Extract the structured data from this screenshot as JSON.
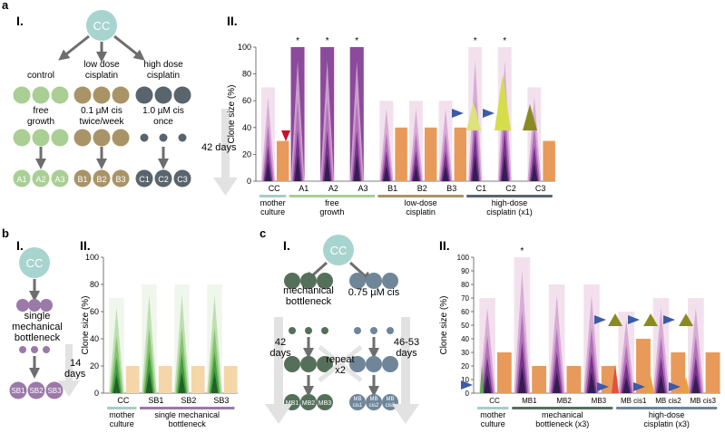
{
  "panel_a": {
    "letter": "a",
    "I": {
      "numeral": "I.",
      "root": "CC",
      "branches": [
        {
          "title": [
            "control"
          ],
          "treatment": [
            "free",
            "growth"
          ],
          "leaves": [
            "A1",
            "A2",
            "A3"
          ],
          "color": "#a9cf94",
          "leaf_color": "#a9cf94"
        },
        {
          "title": [
            "low dose",
            "cisplatin"
          ],
          "treatment": [
            "0.1 µM cis",
            "twice/week"
          ],
          "leaves": [
            "B1",
            "B2",
            "B3"
          ],
          "color": "#a99468",
          "leaf_color": "#a99468"
        },
        {
          "title": [
            "high dose",
            "cisplatin"
          ],
          "treatment": [
            "1.0 µM cis",
            "once"
          ],
          "leaves": [
            "C1",
            "C2",
            "C3"
          ],
          "color": "#59646d",
          "leaf_color": "#59646d"
        }
      ],
      "duration": "42 days"
    },
    "II": {
      "numeral": "II.",
      "ylabel": "Clone size (%)",
      "ticks": [
        "0",
        "20",
        "40",
        "60",
        "80",
        "100"
      ],
      "categories": [
        "CC",
        "A1",
        "A2",
        "A3",
        "B1",
        "B2",
        "B3",
        "C1",
        "C2",
        "C3"
      ],
      "clone_size": [
        70,
        100,
        100,
        100,
        60,
        60,
        60,
        100,
        100,
        70
      ],
      "orange": [
        30,
        0,
        0,
        0,
        40,
        40,
        40,
        0,
        0,
        30
      ],
      "stars": [
        "",
        "*",
        "*",
        "*",
        "",
        "",
        "",
        "*",
        "*",
        ""
      ],
      "star_glyph": "*",
      "groups": [
        {
          "lines": [
            "mother",
            "culture"
          ],
          "color": "#a8ccc8"
        },
        {
          "lines": [
            "free",
            "growth"
          ],
          "color": "#a9cf94"
        },
        {
          "lines": [
            "low-dose",
            "cisplatin"
          ],
          "color": "#a99468"
        },
        {
          "lines": [
            "high-dose",
            "cisplatin (x1)"
          ],
          "color": "#59646d"
        }
      ]
    }
  },
  "panel_b": {
    "letter": "b",
    "I": {
      "numeral": "I.",
      "root": "CC",
      "label": [
        "single",
        "mechanical",
        "bottleneck"
      ],
      "leaves": [
        "SB1",
        "SB2",
        "SB3"
      ],
      "duration": [
        "14",
        "days"
      ],
      "color": "#9b79a8"
    },
    "II": {
      "numeral": "II.",
      "ylabel": "Clone size (%)",
      "ticks": [
        "0",
        "20",
        "40",
        "60",
        "80",
        "100"
      ],
      "categories": [
        "CC",
        "SB1",
        "SB2",
        "SB3"
      ],
      "clone_size": [
        70,
        80,
        80,
        80
      ],
      "orange": [
        20,
        20,
        20,
        20
      ],
      "groups": [
        {
          "lines": [
            "mother",
            "culture"
          ],
          "color": "#a8ccc8"
        },
        {
          "lines": [
            "single mechanical",
            "bottleneck"
          ],
          "color": "#9b79a8"
        }
      ]
    }
  },
  "panel_c": {
    "letter": "c",
    "I": {
      "numeral": "I.",
      "root": "CC",
      "left_label": [
        "mechanical",
        "bottleneck"
      ],
      "right_label": [
        "0.75 µM cis"
      ],
      "left_days": [
        "42",
        "days"
      ],
      "right_days": [
        "46-53",
        "days"
      ],
      "repeat": [
        "repeat",
        "x2"
      ],
      "left_leaves": [
        "MB1",
        "MB2",
        "MB3"
      ],
      "right_leaves": [
        [
          "MB",
          "cis1"
        ],
        [
          "MB",
          "cis2"
        ],
        [
          "MB",
          "cis3"
        ]
      ],
      "left_color": "#55705a",
      "right_color": "#6f8699"
    },
    "II": {
      "numeral": "II.",
      "ylabel": "Clone size (%)",
      "ticks": [
        "0",
        "10",
        "20",
        "30",
        "40",
        "50",
        "60",
        "70",
        "80",
        "90",
        "100"
      ],
      "categories": [
        "CC",
        "MB1",
        "MB2",
        "MB3",
        "MB cis1",
        "MB cis2",
        "MB cis3"
      ],
      "clone_size": [
        70,
        100,
        80,
        80,
        60,
        70,
        70
      ],
      "orange": [
        30,
        20,
        20,
        20,
        40,
        30,
        30
      ],
      "stars": [
        "",
        "*",
        "",
        "",
        "",
        "",
        ""
      ],
      "star_glyph": "*",
      "groups": [
        {
          "lines": [
            "mother",
            "culture"
          ],
          "color": "#a8ccc8"
        },
        {
          "lines": [
            "mechanical",
            "bottleneck (x3)"
          ],
          "color": "#55705a"
        },
        {
          "lines": [
            "high-dose",
            "cisplatin (x3)"
          ],
          "color": "#6f8699"
        }
      ]
    }
  },
  "colors": {
    "root": "#a8d4cf",
    "arrow": "#6e6e6e",
    "long_arrow": "#e2e2e2",
    "orange": "#e89a5a",
    "purple": "#8c4a9c",
    "pink_bg": "#e8c8df",
    "green": "#5aaa4c",
    "green_bg": "#e2eedc",
    "orange_light": "#f5d6a8",
    "triangle_marker": "#3b5aa8",
    "red_marker": "#c8102e",
    "yellow": "#d6dd4a",
    "olive": "#8a8a22"
  }
}
